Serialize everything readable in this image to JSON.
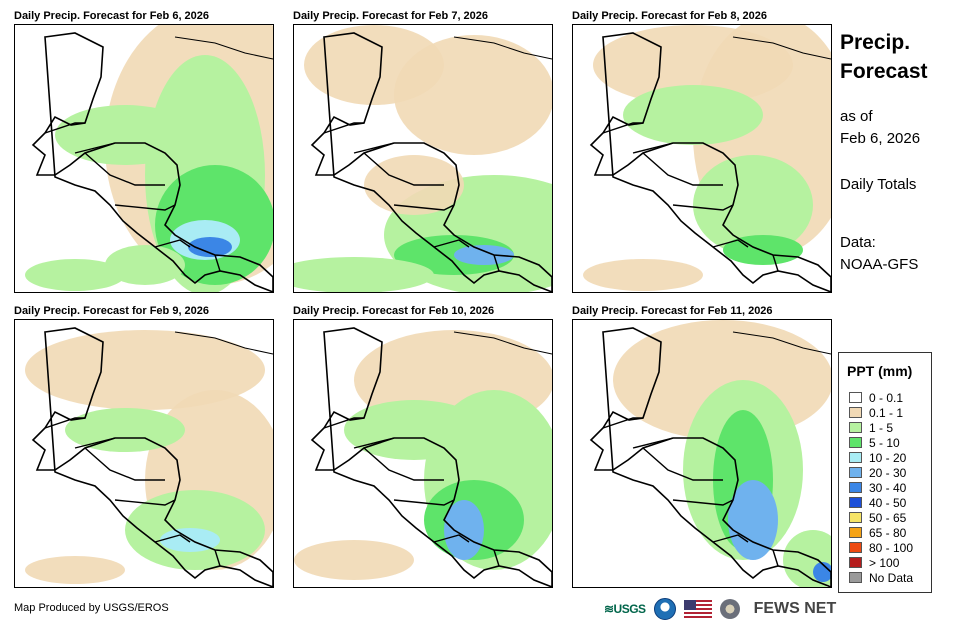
{
  "panels": [
    {
      "title": "Daily Precip. Forecast for Feb 6, 2026"
    },
    {
      "title": "Daily Precip. Forecast for Feb 7, 2026"
    },
    {
      "title": "Daily Precip. Forecast for Feb 8, 2026"
    },
    {
      "title": "Daily Precip. Forecast for Feb 9, 2026"
    },
    {
      "title": "Daily Precip. Forecast for Feb 10, 2026"
    },
    {
      "title": "Daily Precip. Forecast for Feb 11, 2026"
    }
  ],
  "sidebar": {
    "title_line1": "Precip.",
    "title_line2": "Forecast",
    "asof_line1": "as of",
    "asof_line2": "Feb 6, 2026",
    "totals": "Daily Totals",
    "data_line1": "Data:",
    "data_line2": "NOAA-GFS"
  },
  "legend": {
    "title": "PPT (mm)",
    "items": [
      {
        "label": "0 - 0.1",
        "color": "#ffffff"
      },
      {
        "label": "0.1 - 1",
        "color": "#f1d9b5"
      },
      {
        "label": "1 - 5",
        "color": "#b6f2a0"
      },
      {
        "label": "5 - 10",
        "color": "#5ee46a"
      },
      {
        "label": "10 - 20",
        "color": "#a9ecf4"
      },
      {
        "label": "20 - 30",
        "color": "#6fb2ee"
      },
      {
        "label": "30 - 40",
        "color": "#3b86e6"
      },
      {
        "label": "40 - 50",
        "color": "#1c4fd8"
      },
      {
        "label": "50 - 65",
        "color": "#f6e467"
      },
      {
        "label": "65 - 80",
        "color": "#f5a316"
      },
      {
        "label": "80 - 100",
        "color": "#ee4a12"
      },
      {
        "label": "> 100",
        "color": "#b51d1d"
      },
      {
        "label": "No Data",
        "color": "#9a9a9a"
      }
    ]
  },
  "footer": {
    "credit": "Map Produced by USGS/EROS"
  },
  "logos": {
    "usgs": "≋USGS",
    "fews": "FEWS NET"
  }
}
